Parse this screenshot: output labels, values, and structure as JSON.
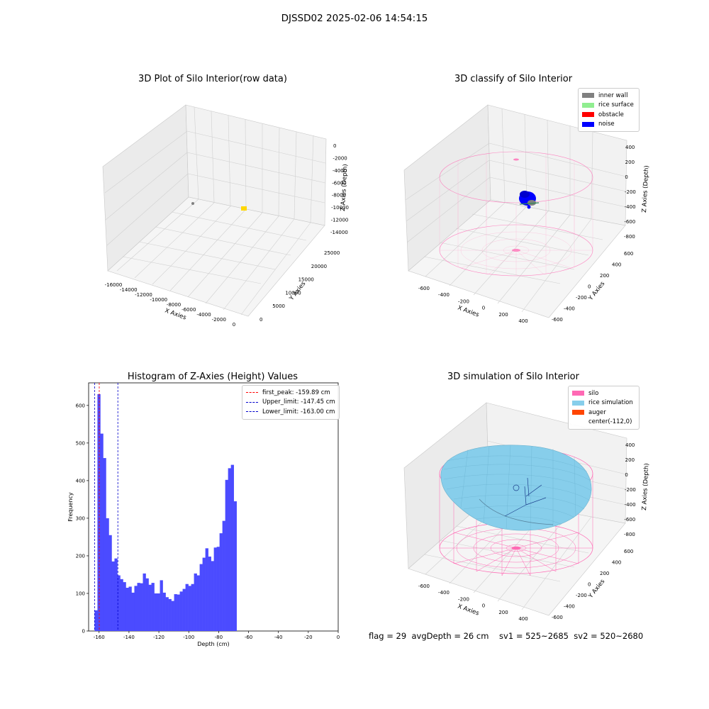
{
  "figure": {
    "suptitle": "DJSSD02 2025-02-06 14:54:15",
    "footer": "flag = 29  avgDepth = 26 cm    sv1 = 525~2685  sv2 = 520~2680"
  },
  "chart_data": [
    {
      "type": "scatter",
      "panel": "top-left",
      "title": "3D Plot of Silo Interior(row data)",
      "xlabel": "X Axies",
      "ylabel": "Y Axies",
      "zlabel": "Z Axies (Depth)",
      "x_ticks": [
        "-16000",
        "-14000",
        "-12000",
        "-10000",
        "-8000",
        "-6000",
        "-4000",
        "-2000",
        "0"
      ],
      "y_ticks": [
        "0",
        "5000",
        "10000",
        "15000",
        "20000",
        "25000"
      ],
      "z_ticks": [
        "0",
        "-2000",
        "-4000",
        "-6000",
        "-8000",
        "-10000",
        "-12000",
        "-14000"
      ],
      "points": [
        {
          "name": "gray cluster",
          "color": "#808080"
        },
        {
          "name": "yellow cluster",
          "color": "#ffd700"
        }
      ]
    },
    {
      "type": "scatter",
      "panel": "top-right",
      "title": "3D classify of Silo Interior",
      "xlabel": "X Axies",
      "ylabel": "Y Axies",
      "zlabel": "Z Axies (Depth)",
      "x_ticks": [
        "-600",
        "-400",
        "-200",
        "0",
        "200",
        "400"
      ],
      "y_ticks": [
        "-600",
        "-400",
        "-200",
        "0",
        "200",
        "400",
        "600"
      ],
      "z_ticks": [
        "400",
        "200",
        "0",
        "-200",
        "-400",
        "-600",
        "-800"
      ],
      "legend": [
        {
          "label": "inner wall",
          "color": "#808080"
        },
        {
          "label": "rice surface",
          "color": "#90ee90"
        },
        {
          "label": "obstacle",
          "color": "#ff0000"
        },
        {
          "label": "noise",
          "color": "#0000ff"
        }
      ],
      "legend_position": "top-right"
    },
    {
      "type": "bar",
      "panel": "bottom-left",
      "title": "Histogram of Z-Axies (Height) Values",
      "xlabel": "Depth (cm)",
      "ylabel": "Frequency",
      "xlim": [
        -167,
        0
      ],
      "ylim": [
        0,
        660
      ],
      "x_ticks": [
        -160,
        -140,
        -120,
        -100,
        -80,
        -60,
        -40,
        -20,
        0
      ],
      "y_ticks": [
        0,
        100,
        200,
        300,
        400,
        500,
        600
      ],
      "bar_color": "#4b4bff",
      "bin_start": -163,
      "bin_width": 1.9,
      "values": [
        55,
        630,
        525,
        460,
        300,
        255,
        185,
        193,
        148,
        138,
        130,
        115,
        118,
        102,
        120,
        128,
        127,
        153,
        140,
        123,
        128,
        100,
        100,
        135,
        102,
        90,
        85,
        80,
        98,
        97,
        105,
        112,
        125,
        120,
        125,
        153,
        148,
        178,
        195,
        220,
        198,
        186,
        222,
        224,
        260,
        293,
        402,
        433,
        442,
        345
      ],
      "vlines": [
        {
          "label": "first_peak: -159.89 cm",
          "x": -159.89,
          "color": "#ff0000"
        },
        {
          "label": "Upper_limit: -147.45 cm",
          "x": -147.45,
          "color": "#0000cc"
        },
        {
          "label": "Lower_limit: -163.00 cm",
          "x": -163.0,
          "color": "#0000cc"
        }
      ],
      "legend_position": "top-right"
    },
    {
      "type": "surface",
      "panel": "bottom-right",
      "title": "3D simulation of Silo Interior",
      "xlabel": "X Axies",
      "ylabel": "Y Axies",
      "zlabel": "Z Axies (Depth)",
      "x_ticks": [
        "-600",
        "-400",
        "-200",
        "0",
        "200",
        "400"
      ],
      "y_ticks": [
        "-600",
        "-400",
        "-200",
        "0",
        "200",
        "400",
        "600"
      ],
      "z_ticks": [
        "400",
        "200",
        "0",
        "-200",
        "-400",
        "-600",
        "-800"
      ],
      "legend": [
        {
          "label": "silo",
          "color": "#ff69b4"
        },
        {
          "label": "rice simulation",
          "color": "#87ceeb"
        },
        {
          "label": "auger",
          "color": "#ff4500"
        },
        {
          "label": "center(-112,0)",
          "color": "#ffffff"
        }
      ],
      "legend_position": "top-right"
    }
  ]
}
